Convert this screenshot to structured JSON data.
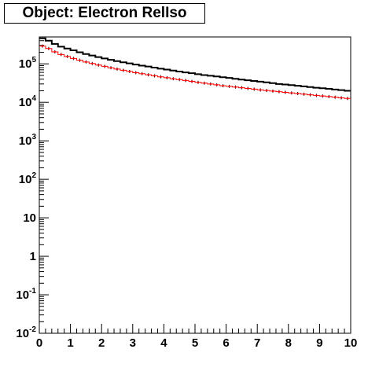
{
  "title": "Object: Electron RelIso",
  "chart_data": {
    "type": "line",
    "title": "Object: Electron RelIso",
    "xlabel": "",
    "ylabel": "",
    "xlim": [
      0,
      10
    ],
    "ylim": [
      0.01,
      500000
    ],
    "yscale": "log",
    "grid": false,
    "x_tick_labels": [
      "0",
      "1",
      "2",
      "3",
      "4",
      "5",
      "6",
      "7",
      "8",
      "9",
      "10"
    ],
    "y_tick_labels": [
      {
        "base": "10",
        "exp": "-2",
        "value": 0.01
      },
      {
        "base": "10",
        "exp": "-1",
        "value": 0.1
      },
      {
        "base": "1",
        "exp": "",
        "value": 1
      },
      {
        "base": "10",
        "exp": "",
        "value": 10
      },
      {
        "base": "10",
        "exp": "2",
        "value": 100
      },
      {
        "base": "10",
        "exp": "3",
        "value": 1000
      },
      {
        "base": "10",
        "exp": "4",
        "value": 10000
      },
      {
        "base": "10",
        "exp": "5",
        "value": 100000
      }
    ],
    "bin_width": 0.2,
    "series": [
      {
        "color": "#000000",
        "style": "histogram",
        "values": [
          460000,
          400000,
          330000,
          280000,
          250000,
          225000,
          200000,
          180000,
          165000,
          150000,
          138000,
          127000,
          118000,
          110000,
          103000,
          96000,
          90000,
          85000,
          80000,
          75000,
          71000,
          67000,
          63000,
          60000,
          57000,
          54000,
          51000,
          49000,
          47000,
          45000,
          43000,
          41000,
          39000,
          37500,
          36000,
          34500,
          33000,
          31500,
          30000,
          29000,
          28000,
          27000,
          26000,
          25000,
          24000,
          23200,
          22400,
          21600,
          20800,
          20000
        ]
      },
      {
        "color": "#ff0000",
        "style": "markers",
        "values": [
          290000,
          250000,
          205000,
          175000,
          155000,
          138000,
          124000,
          112000,
          102000,
          93000,
          86000,
          79000,
          73000,
          68000,
          63500,
          59000,
          55500,
          52000,
          49000,
          46000,
          43500,
          41000,
          39000,
          37000,
          35000,
          33000,
          31500,
          30000,
          28500,
          27000,
          26000,
          25000,
          24000,
          23000,
          22000,
          21000,
          20300,
          19600,
          18900,
          18200,
          17500,
          16900,
          16300,
          15700,
          15100,
          14600,
          14100,
          13600,
          13100,
          12600
        ]
      }
    ]
  }
}
